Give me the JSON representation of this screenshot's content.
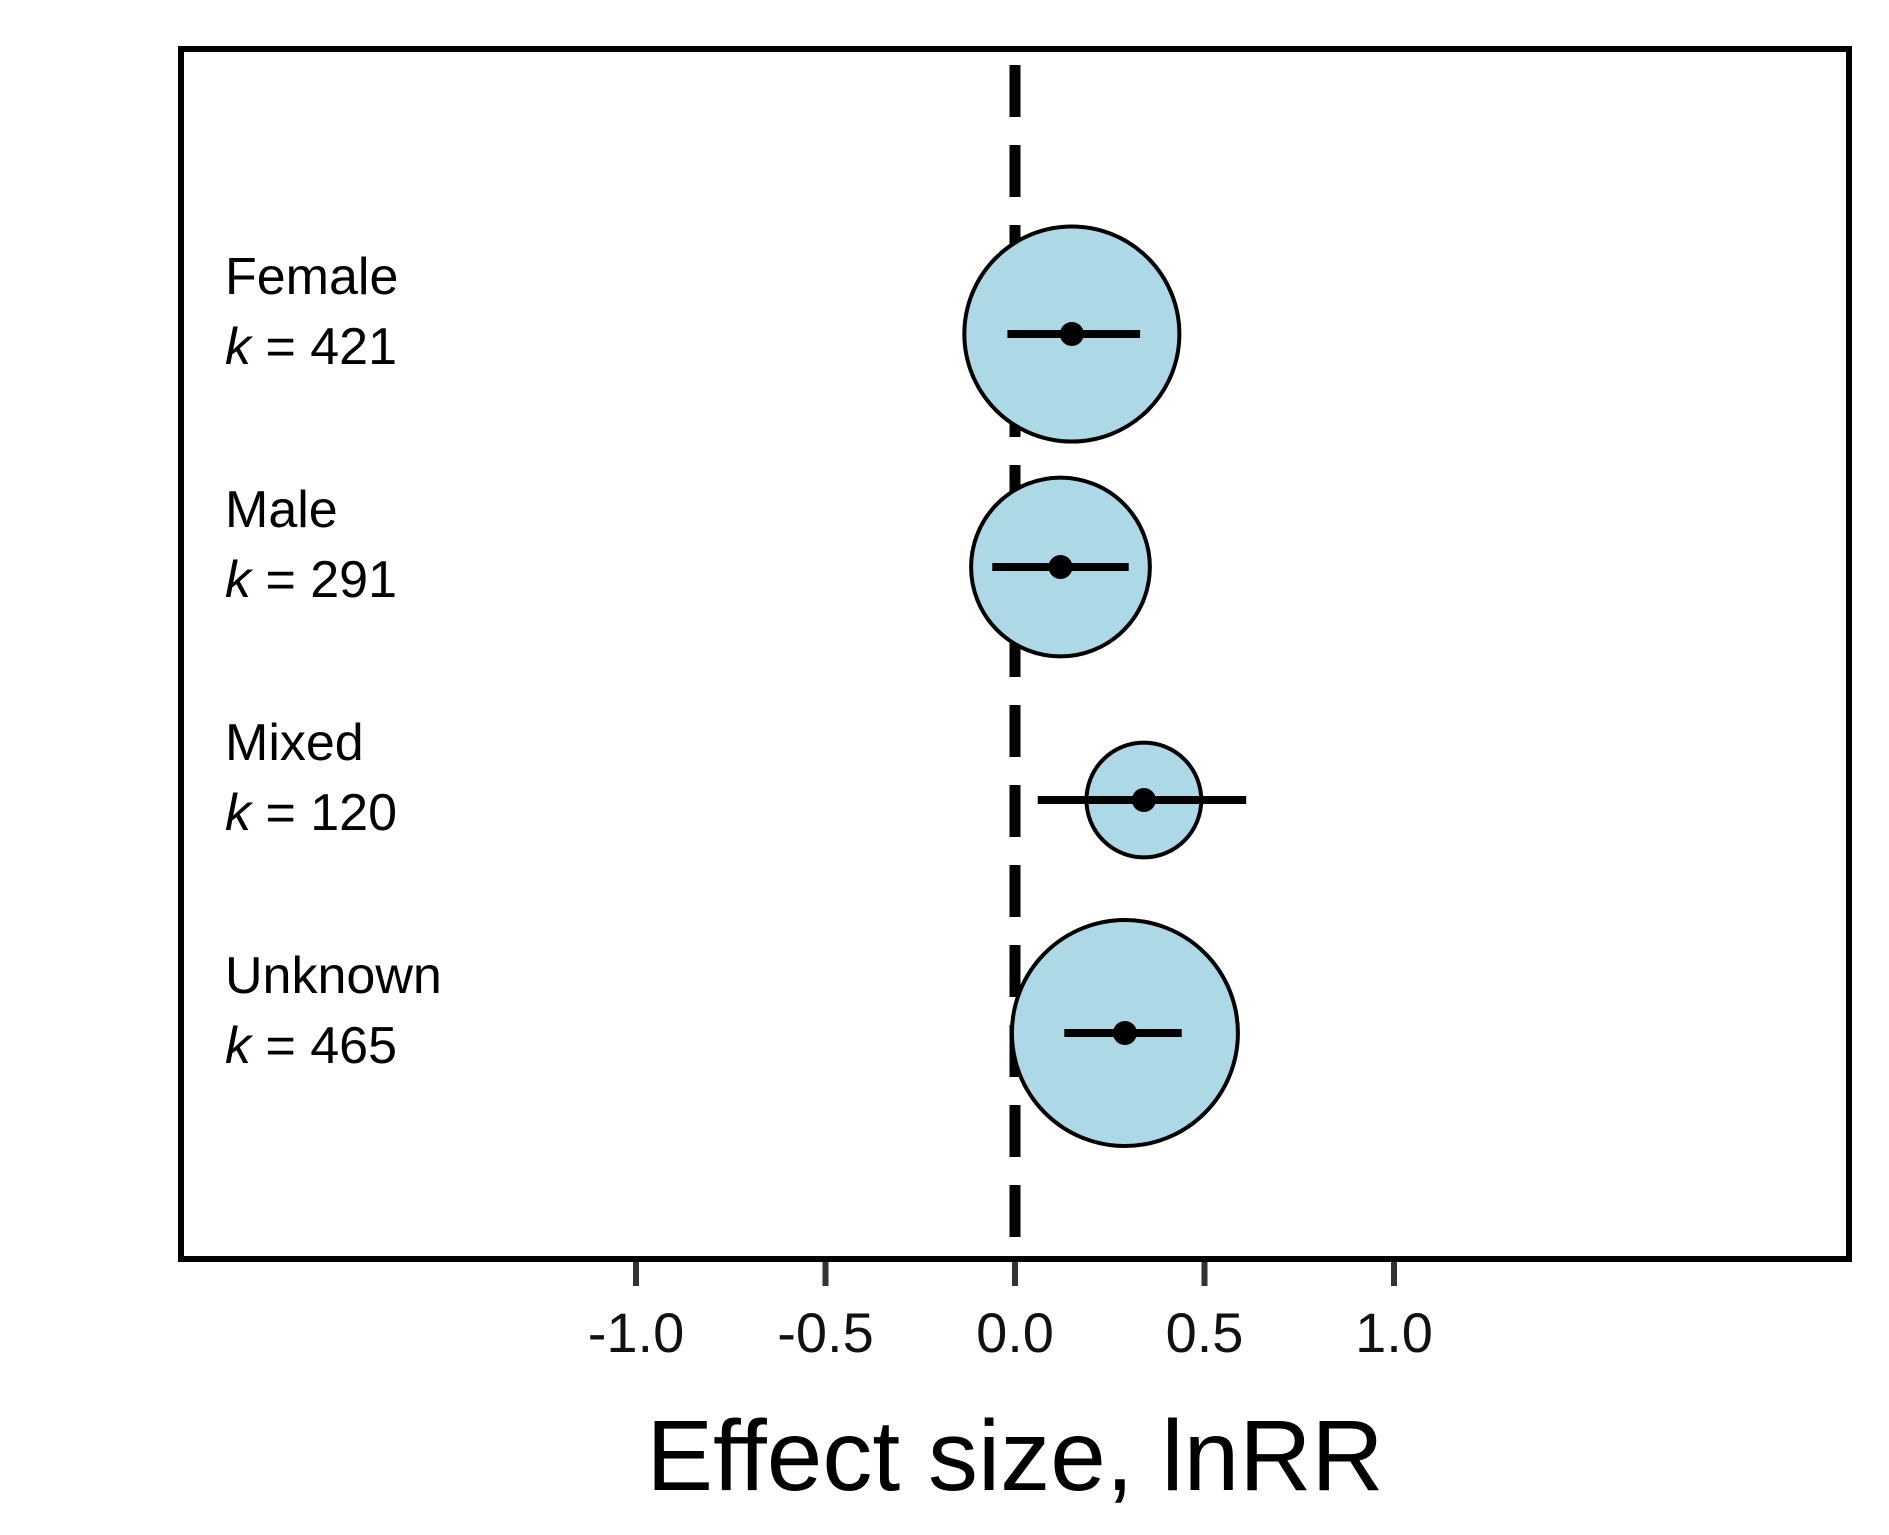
{
  "chart_data": {
    "type": "scatter",
    "subtype": "orchard-forest",
    "title": "",
    "xlabel": "Effect size, lnRR",
    "ylabel": "",
    "xlim": [
      -1.1,
      1.1
    ],
    "x_ticks": [
      -1.0,
      -0.5,
      0.0,
      0.5,
      1.0
    ],
    "x_tick_labels": [
      "-1.0",
      "-0.5",
      "0.0",
      "0.5",
      "1.0"
    ],
    "reference_line": {
      "x": 0.0,
      "style": "dashed"
    },
    "grid": false,
    "legend": "none",
    "categories": [
      {
        "name": "Female",
        "k_label": "k",
        "k_value": "421",
        "estimate": 0.15,
        "ci": [
          -0.02,
          0.33
        ]
      },
      {
        "name": "Male",
        "k_label": "k",
        "k_value": "291",
        "estimate": 0.12,
        "ci": [
          -0.06,
          0.3
        ]
      },
      {
        "name": "Mixed",
        "k_label": "k",
        "k_value": "120",
        "estimate": 0.34,
        "ci": [
          0.06,
          0.61
        ]
      },
      {
        "name": "Unknown",
        "k_label": "k",
        "k_value": "465",
        "estimate": 0.29,
        "ci": [
          0.13,
          0.44
        ]
      }
    ],
    "colors": {
      "bubble_fill": "#add8e6",
      "stroke": "#000000"
    }
  }
}
